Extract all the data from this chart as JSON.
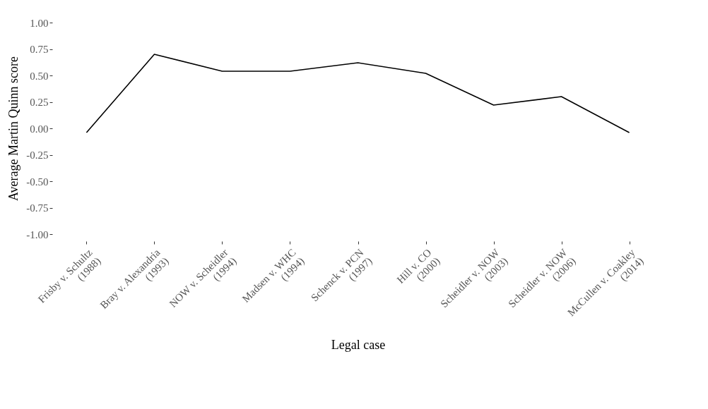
{
  "chart_data": {
    "type": "line",
    "xlabel": "Legal case",
    "ylabel": "Average Martin Quinn score",
    "categories": [
      "Frisby v. Schultz\n(1988)",
      "Bray v. Alexandria\n(1993)",
      "NOW v. Scheidler\n(1994)",
      "Madsen v. WHC\n(1994)",
      "Schenck v. PCN\n(1997)",
      "Hill v. CO\n(2000)",
      "Scheidler v. NOW\n(2003)",
      "Scheidler v. NOW\n(2006)",
      "McCullen v. Coakley\n(2014)"
    ],
    "series": [
      {
        "color": "#000000",
        "values": [
          -0.04,
          0.7,
          0.54,
          0.54,
          0.62,
          0.52,
          0.22,
          0.3,
          -0.04
        ]
      }
    ],
    "ylim": [
      -1,
      1
    ],
    "yticks": [
      {
        "value": 1,
        "label": "1.00"
      },
      {
        "value": 0.75,
        "label": "0.75"
      },
      {
        "value": 0.5,
        "label": "0.50"
      },
      {
        "value": 0.25,
        "label": "0.25"
      },
      {
        "value": 0,
        "label": "0.00"
      },
      {
        "value": -0.25,
        "label": "-0.25"
      },
      {
        "value": -0.5,
        "label": "-0.50"
      },
      {
        "value": -0.75,
        "label": "-0.75"
      },
      {
        "value": -1,
        "label": "-1.00"
      }
    ],
    "grid": false,
    "marker": "none",
    "line_style": "solid"
  }
}
